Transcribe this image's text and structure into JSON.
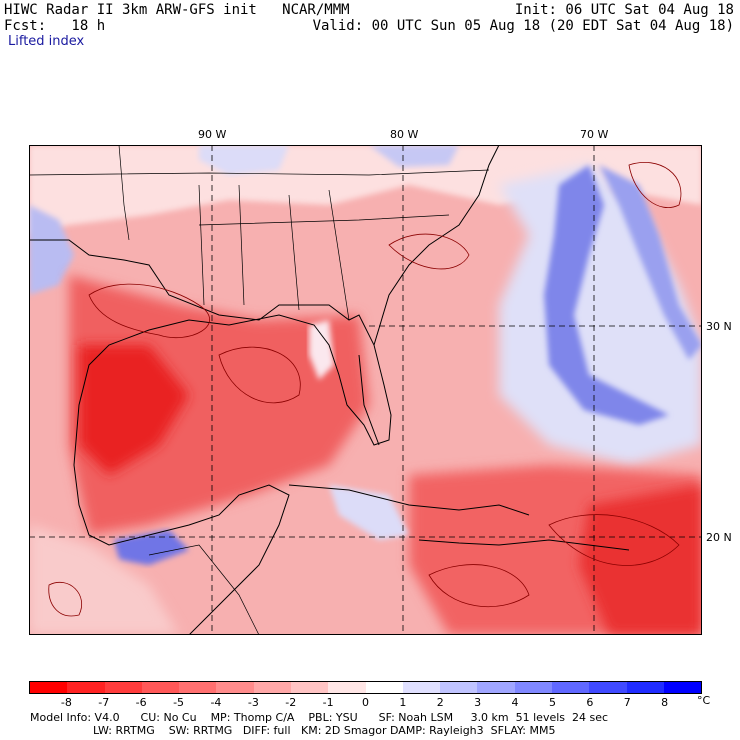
{
  "header": {
    "line1_left": "HIWC Radar II 3km ARW-GFS init   NCAR/MMM",
    "line1_right": "Init: 06 UTC Sat 04 Aug 18",
    "line2_left": "Fcst:   18 h",
    "line2_right": "Valid: 00 UTC Sun 05 Aug 18 (20 EDT Sat 04 Aug 18)",
    "field_name": "Lifted index"
  },
  "map": {
    "lon_labels": [
      "90 W",
      "80 W",
      "70 W"
    ],
    "lat_labels": [
      "30 N",
      "20 N"
    ],
    "colors": {
      "strong_unstable": "#e8191c",
      "moderate_unstable": "#f25a5a",
      "weak_unstable": "#f9a8a8",
      "neutral": "#fde6e6",
      "stable": "#6f75e6",
      "contour": "#8b0000"
    }
  },
  "colorbar": {
    "unit": "°C",
    "labels": [
      "-8",
      "-7",
      "-6",
      "-5",
      "-4",
      "-3",
      "-2",
      "-1",
      "0",
      "1",
      "2",
      "3",
      "4",
      "5",
      "6",
      "7",
      "8"
    ],
    "colors": [
      "#ff0000",
      "#ff2222",
      "#ff3c3c",
      "#ff5858",
      "#ff7070",
      "#ff8c8c",
      "#ffa8a8",
      "#ffc4c4",
      "#ffe6e6",
      "#ffffff",
      "#e0e0ff",
      "#c0c4ff",
      "#a0a6ff",
      "#8088ff",
      "#6068ff",
      "#404aff",
      "#202cff",
      "#0000ff"
    ]
  },
  "footer": {
    "line1": "Model Info: V4.0      CU: No Cu    MP: Thomp C/A    PBL: YSU      SF: Noah LSM     3.0 km  51 levels  24 sec",
    "line2": "                  LW: RRTMG    SW: RRTMG   DIFF: full   KM: 2D Smagor DAMP: Rayleigh3  SFLAY: MM5"
  }
}
